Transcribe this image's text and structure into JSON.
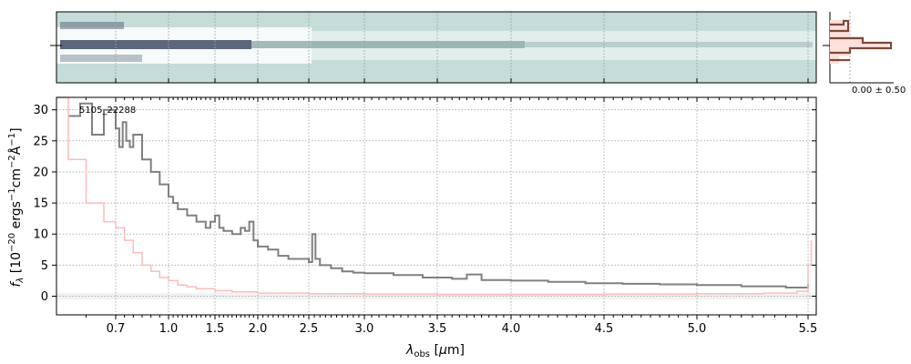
{
  "chart_data": {
    "type": "line",
    "object_id": "5105_22288",
    "xlabel": "λ_obs [μm]",
    "ylabel": "f_λ [10^-20 ergs^-1 cm^-2 Å^-1]",
    "xlim": [
      0.6,
      5.55
    ],
    "ylim": [
      -3,
      32
    ],
    "x_scale": "reciprocal-like (spectral)",
    "x_ticks": [
      0.7,
      1.0,
      1.5,
      2.0,
      2.5,
      3.0,
      3.5,
      4.0,
      4.5,
      5.0,
      5.5
    ],
    "x_tick_labels": [
      "0.7",
      "1.0",
      "1.5",
      "2.0",
      "2.5",
      "3.0",
      "3.5",
      "4.0",
      "4.5",
      "5.0",
      "5.5"
    ],
    "y_ticks": [
      0,
      5,
      10,
      15,
      20,
      25,
      30
    ],
    "y_tick_labels": [
      "0",
      "5",
      "10",
      "15",
      "20",
      "25",
      "30"
    ],
    "grid": true,
    "series": [
      {
        "color": "#808080",
        "x": [
          0.62,
          0.64,
          0.66,
          0.68,
          0.7,
          0.72,
          0.74,
          0.76,
          0.78,
          0.8,
          0.85,
          0.9,
          0.95,
          1.0,
          1.05,
          1.1,
          1.15,
          1.2,
          1.3,
          1.4,
          1.45,
          1.5,
          1.55,
          1.6,
          1.7,
          1.8,
          1.85,
          1.9,
          1.95,
          2.0,
          2.1,
          2.2,
          2.3,
          2.4,
          2.5,
          2.53,
          2.56,
          2.6,
          2.7,
          2.8,
          2.9,
          3.0,
          3.2,
          3.4,
          3.6,
          3.7,
          3.8,
          4.0,
          4.2,
          4.4,
          4.6,
          4.8,
          5.0,
          5.2,
          5.4,
          5.5
        ],
        "y": [
          29,
          31,
          26,
          30,
          27,
          24,
          28,
          25,
          24,
          26,
          22,
          20,
          18,
          16,
          15,
          14,
          14,
          13,
          12,
          11,
          12,
          13,
          11,
          10.5,
          10,
          11,
          10.5,
          12,
          9,
          8,
          7.5,
          6.5,
          6,
          6,
          5.5,
          10,
          6,
          5,
          4.5,
          4,
          3.8,
          3.7,
          3.4,
          3,
          2.8,
          3.5,
          2.6,
          2.5,
          2.3,
          2.1,
          2,
          1.9,
          1.8,
          1.6,
          1.4,
          2
        ]
      },
      {
        "color": "#ffbbbb",
        "x": [
          0.6,
          0.62,
          0.65,
          0.68,
          0.7,
          0.75,
          0.8,
          0.85,
          0.9,
          0.95,
          1.0,
          1.1,
          1.2,
          1.3,
          1.5,
          1.7,
          2.0,
          2.5,
          3.0,
          3.5,
          4.0,
          4.5,
          5.0,
          5.3,
          5.45,
          5.5,
          5.52
        ],
        "y": [
          32,
          22,
          15,
          12,
          11,
          9,
          7,
          5,
          4,
          3,
          2.5,
          1.8,
          1.5,
          1.2,
          0.9,
          0.7,
          0.5,
          0.4,
          0.35,
          0.3,
          0.3,
          0.35,
          0.4,
          0.5,
          0.8,
          5,
          9
        ]
      }
    ],
    "histogram": {
      "label": "0.00 ± 0.50"
    }
  }
}
